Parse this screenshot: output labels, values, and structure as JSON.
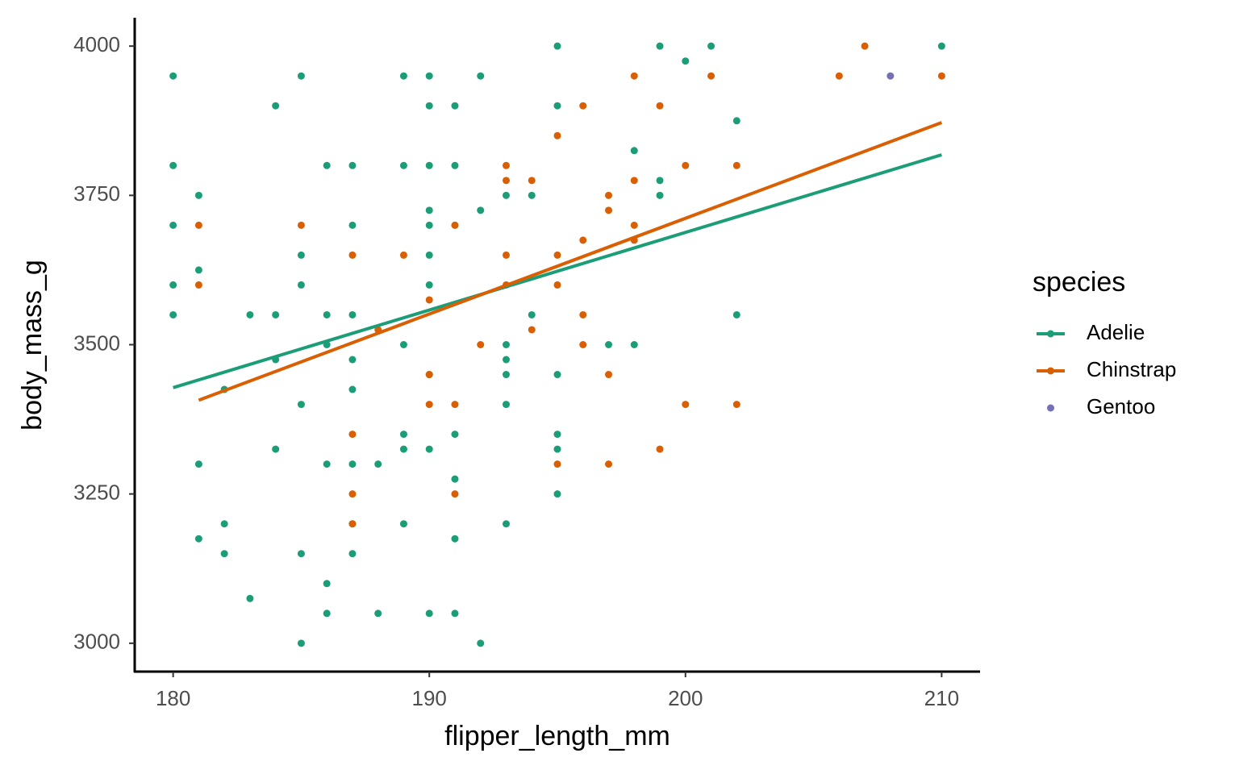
{
  "chart_data": {
    "type": "scatter",
    "x_label": "flipper_length_mm",
    "y_label": "body_mass_g",
    "legend_title": "species",
    "legend_position": "right",
    "xlim": [
      178.5,
      211.5
    ],
    "ylim": [
      2952.5,
      4047.5
    ],
    "xticks": [
      180,
      190,
      200,
      210
    ],
    "yticks": [
      3000,
      3250,
      3500,
      3750,
      4000
    ],
    "series": [
      {
        "name": "Adelie",
        "color": "#1b9e77",
        "x": [
          180,
          180,
          180,
          180,
          180,
          181,
          181,
          181,
          181,
          182,
          182,
          182,
          183,
          183,
          184,
          184,
          184,
          184,
          185,
          185,
          185,
          185,
          185,
          185,
          186,
          186,
          186,
          186,
          186,
          186,
          187,
          187,
          187,
          187,
          187,
          187,
          187,
          187,
          188,
          188,
          189,
          189,
          189,
          189,
          189,
          189,
          190,
          190,
          190,
          190,
          190,
          190,
          190,
          190,
          190,
          190,
          191,
          191,
          191,
          191,
          191,
          191,
          191,
          192,
          192,
          192,
          193,
          193,
          193,
          193,
          193,
          193,
          194,
          194,
          195,
          195,
          195,
          195,
          195,
          195,
          197,
          198,
          198,
          199,
          199,
          199,
          200,
          201,
          202,
          202,
          210
        ],
        "values": [
          3950,
          3800,
          3700,
          3600,
          3550,
          3750,
          3625,
          3300,
          3175,
          3425,
          3200,
          3150,
          3550,
          3075,
          3900,
          3550,
          3475,
          3325,
          3950,
          3650,
          3600,
          3400,
          3150,
          3000,
          3800,
          3550,
          3500,
          3300,
          3100,
          3050,
          3800,
          3700,
          3550,
          3475,
          3425,
          3300,
          3200,
          3150,
          3300,
          3050,
          3950,
          3800,
          3500,
          3350,
          3325,
          3200,
          3950,
          3900,
          3800,
          3725,
          3700,
          3650,
          3600,
          3450,
          3325,
          3050,
          3900,
          3800,
          3700,
          3350,
          3275,
          3175,
          3050,
          3950,
          3725,
          3000,
          3750,
          3500,
          3475,
          3450,
          3400,
          3200,
          3750,
          3550,
          4000,
          3900,
          3450,
          3350,
          3325,
          3250,
          3500,
          3825,
          3500,
          4000,
          3775,
          3750,
          3975,
          4000,
          3875,
          3550,
          4000
        ],
        "fit": {
          "x": [
            180,
            210
          ],
          "values": [
            3428,
            3818
          ]
        }
      },
      {
        "name": "Chinstrap",
        "color": "#d95f02",
        "x": [
          181,
          181,
          185,
          187,
          187,
          187,
          187,
          188,
          189,
          190,
          190,
          190,
          191,
          191,
          191,
          192,
          193,
          193,
          193,
          193,
          194,
          194,
          195,
          195,
          195,
          195,
          196,
          196,
          196,
          196,
          197,
          197,
          197,
          197,
          198,
          198,
          198,
          198,
          199,
          199,
          200,
          200,
          201,
          202,
          202,
          206,
          207,
          210
        ],
        "values": [
          3700,
          3600,
          3700,
          3650,
          3350,
          3250,
          3200,
          3525,
          3650,
          3575,
          3450,
          3400,
          3700,
          3400,
          3250,
          3500,
          3800,
          3775,
          3650,
          3600,
          3775,
          3525,
          3850,
          3650,
          3600,
          3300,
          3900,
          3675,
          3550,
          3500,
          3750,
          3725,
          3450,
          3300,
          3950,
          3775,
          3700,
          3675,
          3900,
          3325,
          3800,
          3400,
          3950,
          3800,
          3400,
          3950,
          4000,
          3950
        ],
        "fit": {
          "x": [
            181,
            210
          ],
          "values": [
            3407,
            3872
          ]
        }
      },
      {
        "name": "Gentoo",
        "color": "#7570b3",
        "x": [
          208
        ],
        "values": [
          3950
        ]
      }
    ]
  }
}
